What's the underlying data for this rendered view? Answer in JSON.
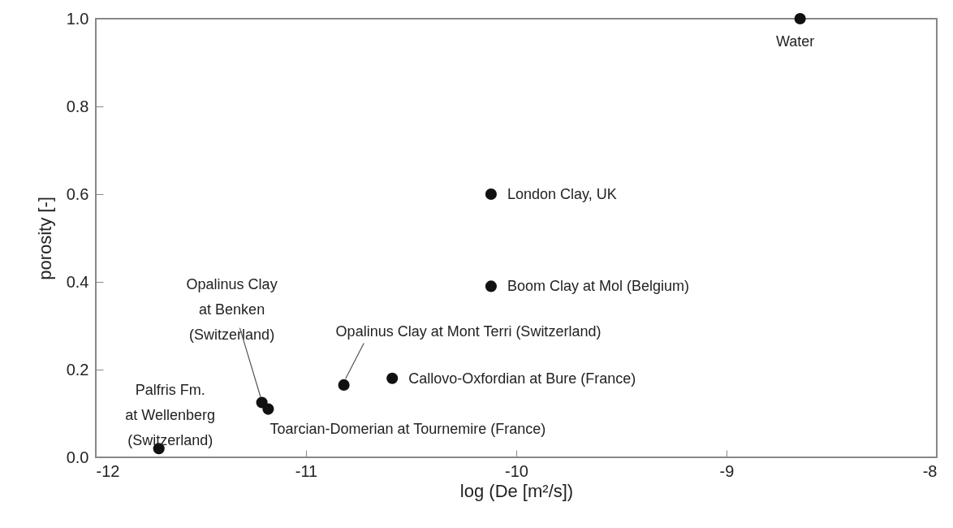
{
  "chart_data": {
    "type": "scatter",
    "xlabel": "log (De [m²/s])",
    "ylabel": "porosity [-]",
    "x": [
      -8.65,
      -10.12,
      -10.12,
      -10.59,
      -10.82,
      -11.21,
      -11.18,
      -11.7
    ],
    "series": [
      {
        "color": "#111111",
        "values": [
          1.0,
          0.6,
          0.39,
          0.18,
          0.165,
          0.125,
          0.11,
          0.02
        ]
      }
    ],
    "xlim": [
      -12,
      -8
    ],
    "xticks": [
      -12,
      -11,
      -10,
      -9,
      -8
    ],
    "ylim": [
      0,
      1
    ],
    "yticks": [
      {
        "value": 0,
        "label": "0.0"
      },
      {
        "value": 0.2,
        "label": "0.2"
      },
      {
        "value": 0.4,
        "label": "0.4"
      },
      {
        "value": 0.6,
        "label": "0.6"
      },
      {
        "value": 0.8,
        "label": "0.8"
      },
      {
        "value": 1,
        "label": "1.0"
      }
    ],
    "grid": false,
    "marker": "circle",
    "annotations": [
      {
        "text": "Water",
        "x": -8.65,
        "y": 1.0
      },
      {
        "text": "London Clay, UK",
        "x": -10.12,
        "y": 0.6
      },
      {
        "text": "Boom Clay at Mol (Belgium)",
        "x": -10.12,
        "y": 0.39
      },
      {
        "text": "Callovo-Oxfordian at Bure (France)",
        "x": -10.59,
        "y": 0.18
      },
      {
        "text": "Opalinus Clay at Mont Terri (Switzerland)",
        "x": -10.82,
        "y": 0.165
      },
      {
        "text": "Opalinus Clay\nat Benken\n(Switzerland)",
        "x": -11.21,
        "y": 0.125
      },
      {
        "text": "Toarcian-Domerian at Tournemire (France)",
        "x": -11.18,
        "y": 0.11
      },
      {
        "text": "Palfris Fm.\nat Wellenberg\n(Switzerland)",
        "x": -11.7,
        "y": 0.02
      }
    ]
  }
}
